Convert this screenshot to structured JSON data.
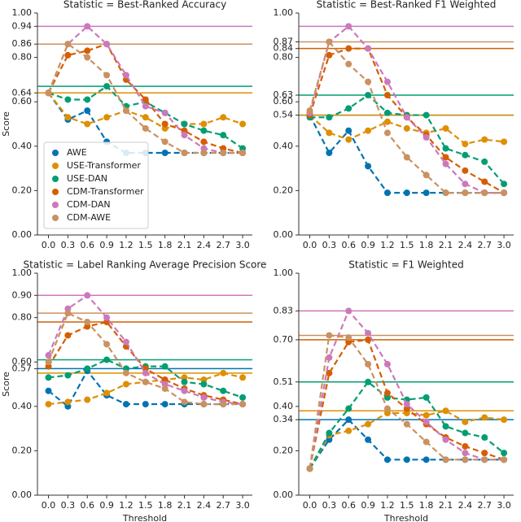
{
  "chart_data": [
    {
      "type": "line",
      "title": "Statistic = Best-Ranked Accuracy",
      "ylabel": "Score",
      "legend": "lower left",
      "x": [
        0,
        0.3,
        0.6,
        0.9,
        1.2,
        1.5,
        1.8,
        2.1,
        2.4,
        2.7,
        3
      ],
      "xlim": [
        -0.17,
        3.15
      ],
      "xticks": [
        {
          "value": 0,
          "label": "0.0"
        },
        0.3,
        0.6,
        0.9,
        1.2,
        1.5,
        1.8,
        2.1,
        2.4,
        2.7,
        {
          "value": 3,
          "label": "3.0"
        }
      ],
      "ylim": [
        0,
        1
      ],
      "yticks": [
        {
          "value": 0,
          "label": "0.00"
        },
        {
          "value": 0.2,
          "label": "0.20"
        },
        {
          "value": 0.4,
          "label": "0.40"
        },
        {
          "value": 0.6,
          "label": "0.60"
        },
        0.64,
        {
          "value": 0.8,
          "label": "0.80"
        },
        0.86,
        0.94,
        {
          "value": 1,
          "label": "1.00"
        }
      ],
      "series": [
        {
          "name": "AWE",
          "color": "#0173b2",
          "reference": 0.64,
          "values": [
            0.64,
            0.52,
            0.56,
            0.42,
            0.37,
            0.37,
            0.37,
            0.37,
            0.37,
            0.37,
            0.37
          ]
        },
        {
          "name": "USE-Transformer",
          "color": "#de8f05",
          "reference": 0.64,
          "values": [
            0.64,
            0.53,
            0.5,
            0.53,
            0.56,
            0.53,
            0.48,
            0.5,
            0.5,
            0.53,
            0.5
          ]
        },
        {
          "name": "USE-DAN",
          "color": "#029e73",
          "reference": 0.67,
          "values": [
            0.64,
            0.61,
            0.61,
            0.67,
            0.58,
            0.6,
            0.55,
            0.5,
            0.47,
            0.45,
            0.39
          ]
        },
        {
          "name": "CDM-Transformer",
          "color": "#d55e00",
          "reference": 0.86,
          "values": [
            0.64,
            0.81,
            0.83,
            0.86,
            0.7,
            0.61,
            0.5,
            0.47,
            0.42,
            0.39,
            0.37
          ]
        },
        {
          "name": "CDM-DAN",
          "color": "#cc78bc",
          "reference": 0.94,
          "values": [
            0.64,
            0.86,
            0.94,
            0.86,
            0.72,
            0.58,
            0.55,
            0.45,
            0.39,
            0.37,
            0.37
          ]
        },
        {
          "name": "CDM-AWE",
          "color": "#ca9161",
          "reference": 0.86,
          "values": [
            0.64,
            0.86,
            0.8,
            0.72,
            0.56,
            0.48,
            0.42,
            0.37,
            0.37,
            0.37,
            0.37
          ]
        }
      ]
    },
    {
      "type": "line",
      "title": "Statistic = Best-Ranked F1 Weighted",
      "x": [
        0,
        0.3,
        0.6,
        0.9,
        1.2,
        1.5,
        1.8,
        2.1,
        2.4,
        2.7,
        3
      ],
      "xlim": [
        -0.17,
        3.15
      ],
      "xticks": [
        {
          "value": 0,
          "label": "0.0"
        },
        0.3,
        0.6,
        0.9,
        1.2,
        1.5,
        1.8,
        2.1,
        2.4,
        2.7,
        {
          "value": 3,
          "label": "3.0"
        }
      ],
      "ylim": [
        0,
        1
      ],
      "yticks": [
        {
          "value": 0,
          "label": "0.00"
        },
        {
          "value": 0.2,
          "label": "0.20"
        },
        {
          "value": 0.4,
          "label": "0.40"
        },
        0.54,
        {
          "value": 0.6,
          "label": "0.60"
        },
        0.63,
        {
          "value": 0.8,
          "label": "0.80"
        },
        0.84,
        0.87,
        {
          "value": 1,
          "label": "1.00"
        }
      ],
      "series": [
        {
          "name": "AWE",
          "color": "#0173b2",
          "reference": 0.54,
          "values": [
            0.54,
            0.37,
            0.47,
            0.31,
            0.19,
            0.19,
            0.19,
            0.19,
            0.19,
            0.19,
            0.19
          ]
        },
        {
          "name": "USE-Transformer",
          "color": "#de8f05",
          "reference": 0.54,
          "values": [
            0.54,
            0.46,
            0.43,
            0.47,
            0.51,
            0.48,
            0.46,
            0.48,
            0.41,
            0.43,
            0.42
          ]
        },
        {
          "name": "USE-DAN",
          "color": "#029e73",
          "reference": 0.63,
          "values": [
            0.53,
            0.53,
            0.57,
            0.63,
            0.55,
            0.54,
            0.54,
            0.39,
            0.36,
            0.33,
            0.23
          ]
        },
        {
          "name": "CDM-Transformer",
          "color": "#d55e00",
          "reference": 0.84,
          "values": [
            0.54,
            0.81,
            0.84,
            0.84,
            0.63,
            0.53,
            0.45,
            0.35,
            0.29,
            0.24,
            0.19
          ]
        },
        {
          "name": "CDM-DAN",
          "color": "#cc78bc",
          "reference": 0.94,
          "values": [
            0.55,
            0.87,
            0.94,
            0.84,
            0.69,
            0.53,
            0.44,
            0.32,
            0.23,
            0.19,
            0.19
          ]
        },
        {
          "name": "CDM-AWE",
          "color": "#ca9161",
          "reference": 0.87,
          "values": [
            0.56,
            0.87,
            0.77,
            0.69,
            0.46,
            0.35,
            0.27,
            0.19,
            0.19,
            0.19,
            0.19
          ]
        }
      ]
    },
    {
      "type": "line",
      "title": "Statistic = Label Ranking Average Precision Score",
      "ylabel": "Score",
      "xlabel": "Threshold",
      "x": [
        0,
        0.3,
        0.6,
        0.9,
        1.2,
        1.5,
        1.8,
        2.1,
        2.4,
        2.7,
        3
      ],
      "xlim": [
        -0.17,
        3.15
      ],
      "xticks": [
        {
          "value": 0,
          "label": "0.0"
        },
        0.3,
        0.6,
        0.9,
        1.2,
        1.5,
        1.8,
        2.1,
        2.4,
        2.7,
        {
          "value": 3,
          "label": "3.0"
        }
      ],
      "ylim": [
        0,
        1
      ],
      "yticks": [
        {
          "value": 0,
          "label": "0.00"
        },
        {
          "value": 0.2,
          "label": "0.20"
        },
        {
          "value": 0.4,
          "label": "0.40"
        },
        0.57,
        {
          "value": 0.6,
          "label": "0.60"
        },
        {
          "value": 0.8,
          "label": "0.80"
        },
        {
          "value": 0.9,
          "label": "0.90"
        },
        {
          "value": 1,
          "label": "1.00"
        }
      ],
      "series": [
        {
          "name": "AWE",
          "color": "#0173b2",
          "reference": 0.57,
          "values": [
            0.47,
            0.4,
            0.56,
            0.45,
            0.41,
            0.41,
            0.41,
            0.41,
            0.41,
            0.41,
            0.41
          ]
        },
        {
          "name": "USE-Transformer",
          "color": "#de8f05",
          "reference": 0.55,
          "values": [
            0.41,
            0.42,
            0.43,
            0.46,
            0.5,
            0.51,
            0.52,
            0.53,
            0.52,
            0.55,
            0.53
          ]
        },
        {
          "name": "USE-DAN",
          "color": "#029e73",
          "reference": 0.61,
          "values": [
            0.53,
            0.54,
            0.57,
            0.61,
            0.57,
            0.58,
            0.58,
            0.51,
            0.5,
            0.47,
            0.44
          ]
        },
        {
          "name": "CDM-Transformer",
          "color": "#d55e00",
          "reference": 0.78,
          "values": [
            0.58,
            0.72,
            0.76,
            0.78,
            0.67,
            0.57,
            0.52,
            0.48,
            0.45,
            0.43,
            0.41
          ]
        },
        {
          "name": "CDM-DAN",
          "color": "#cc78bc",
          "reference": 0.9,
          "values": [
            0.63,
            0.84,
            0.9,
            0.8,
            0.69,
            0.55,
            0.5,
            0.47,
            0.44,
            0.42,
            0.41
          ]
        },
        {
          "name": "CDM-AWE",
          "color": "#ca9161",
          "reference": 0.82,
          "values": [
            0.6,
            0.82,
            0.78,
            0.68,
            0.55,
            0.51,
            0.48,
            0.42,
            0.41,
            0.41,
            0.41
          ]
        }
      ]
    },
    {
      "type": "line",
      "title": "Statistic = F1 Weighted",
      "xlabel": "Threshold",
      "x": [
        0,
        0.3,
        0.6,
        0.9,
        1.2,
        1.5,
        1.8,
        2.1,
        2.4,
        2.7,
        3
      ],
      "xlim": [
        -0.17,
        3.15
      ],
      "xticks": [
        {
          "value": 0,
          "label": "0.0"
        },
        0.3,
        0.6,
        0.9,
        1.2,
        1.5,
        1.8,
        2.1,
        2.4,
        2.7,
        {
          "value": 3,
          "label": "3.0"
        }
      ],
      "ylim": [
        0,
        1
      ],
      "yticks": [
        {
          "value": 0,
          "label": "0.00"
        },
        {
          "value": 0.2,
          "label": "0.20"
        },
        0.34,
        {
          "value": 0.4,
          "label": "0.40"
        },
        0.51,
        {
          "value": 0.7,
          "label": "0.70"
        },
        0.83,
        {
          "value": 1,
          "label": "1.00"
        }
      ],
      "series": [
        {
          "name": "AWE",
          "color": "#0173b2",
          "reference": 0.34,
          "values": [
            0.12,
            0.25,
            0.34,
            0.25,
            0.16,
            0.16,
            0.16,
            0.16,
            0.16,
            0.16,
            0.16
          ]
        },
        {
          "name": "USE-Transformer",
          "color": "#de8f05",
          "reference": 0.38,
          "values": [
            0.12,
            0.27,
            0.29,
            0.32,
            0.37,
            0.37,
            0.36,
            0.38,
            0.33,
            0.35,
            0.34
          ]
        },
        {
          "name": "USE-DAN",
          "color": "#029e73",
          "reference": 0.51,
          "values": [
            0.12,
            0.28,
            0.39,
            0.51,
            0.44,
            0.43,
            0.44,
            0.31,
            0.28,
            0.26,
            0.19
          ]
        },
        {
          "name": "CDM-Transformer",
          "color": "#d55e00",
          "reference": 0.7,
          "values": [
            0.12,
            0.55,
            0.69,
            0.7,
            0.46,
            0.39,
            0.32,
            0.26,
            0.22,
            0.19,
            0.16
          ]
        },
        {
          "name": "CDM-DAN",
          "color": "#cc78bc",
          "reference": 0.83,
          "values": [
            0.12,
            0.62,
            0.83,
            0.73,
            0.59,
            0.41,
            0.33,
            0.25,
            0.19,
            0.16,
            0.16
          ]
        },
        {
          "name": "CDM-AWE",
          "color": "#ca9161",
          "reference": 0.72,
          "values": [
            0.12,
            0.72,
            0.71,
            0.59,
            0.39,
            0.32,
            0.24,
            0.16,
            0.16,
            0.16,
            0.16
          ]
        }
      ]
    }
  ]
}
